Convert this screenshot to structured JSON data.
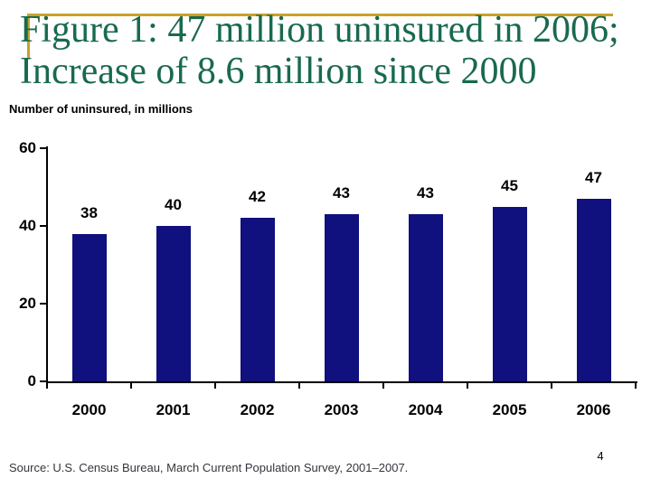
{
  "slide": {
    "title_line1": "Figure 1: 47 million uninsured in 2006;",
    "title_line2": "Increase of 8.6 million since 2000",
    "subtitle": "Number of uninsured, in millions",
    "source": "Source: U.S. Census Bureau, March Current Population Survey, 2001–2007.",
    "page_number": "4",
    "colors": {
      "title_green": "#186a4e",
      "accent_gold": "#c8a22c",
      "bar_navy": "#10107e"
    }
  },
  "chart_data": {
    "type": "bar",
    "categories": [
      "2000",
      "2001",
      "2002",
      "2003",
      "2004",
      "2005",
      "2006"
    ],
    "values": [
      38,
      40,
      42,
      43,
      43,
      45,
      47
    ],
    "title": "Figure 1: 47 million uninsured in 2006; Increase of 8.6 million since 2000",
    "xlabel": "",
    "ylabel": "Number of uninsured, in millions",
    "ylim": [
      0,
      60
    ],
    "yticks": [
      0,
      20,
      40,
      60
    ],
    "grid": false,
    "legend": false,
    "data_labels": true,
    "bar_color": "#10107e"
  }
}
